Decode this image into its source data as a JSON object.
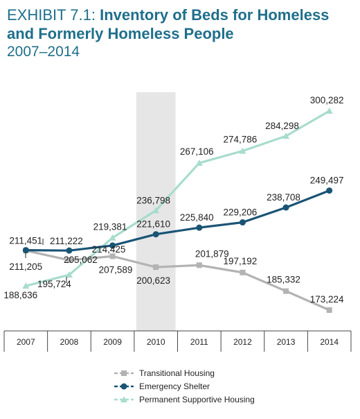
{
  "title": {
    "prefix": "EXHIBIT 7.1: ",
    "main_line1": "Inventory of Beds for Homeless",
    "main_line2": "and Formerly Homeless People",
    "subtitle": "2007–2014"
  },
  "colors": {
    "title": "#1f6f8b",
    "transitional": "#b3b3b3",
    "emergency": "#1a5475",
    "permanent": "#a8dccd",
    "highlight": "#e6e6e6",
    "axis": "#444444"
  },
  "chart_data": {
    "type": "line",
    "title": "Inventory of Beds for Homeless and Formerly Homeless People",
    "subtitle": "2007–2014",
    "categories": [
      "2007",
      "2008",
      "2009",
      "2010",
      "2011",
      "2012",
      "2013",
      "2014"
    ],
    "highlight_category": "2010",
    "grid": false,
    "legend_position": "bottom-center",
    "series": [
      {
        "name": "Transitional Housing",
        "marker": "square",
        "color": "#b3b3b3",
        "values": [
          211205,
          205062,
          207589,
          200623,
          201879,
          197192,
          185332,
          173224
        ],
        "labels": [
          "211,205",
          "205,062",
          "207,589",
          "200,623",
          "201,879",
          "197,192",
          "185,332",
          "173,224"
        ]
      },
      {
        "name": "Emergency Shelter",
        "marker": "circle",
        "color": "#1a5475",
        "values": [
          211451,
          211222,
          214425,
          221610,
          225840,
          229206,
          238708,
          249497
        ],
        "labels": [
          "211,451",
          "211,222",
          "214,425",
          "221,610",
          "225,840",
          "229,206",
          "238,708",
          "249,497"
        ]
      },
      {
        "name": "Permanent Supportive Housing",
        "marker": "triangle",
        "color": "#a8dccd",
        "values": [
          188636,
          195724,
          219381,
          236798,
          267106,
          274786,
          284298,
          300282
        ],
        "labels": [
          "188,636",
          "195,724",
          "219,381",
          "236,798",
          "267,106",
          "274,786",
          "284,298",
          "300,282"
        ]
      }
    ]
  }
}
